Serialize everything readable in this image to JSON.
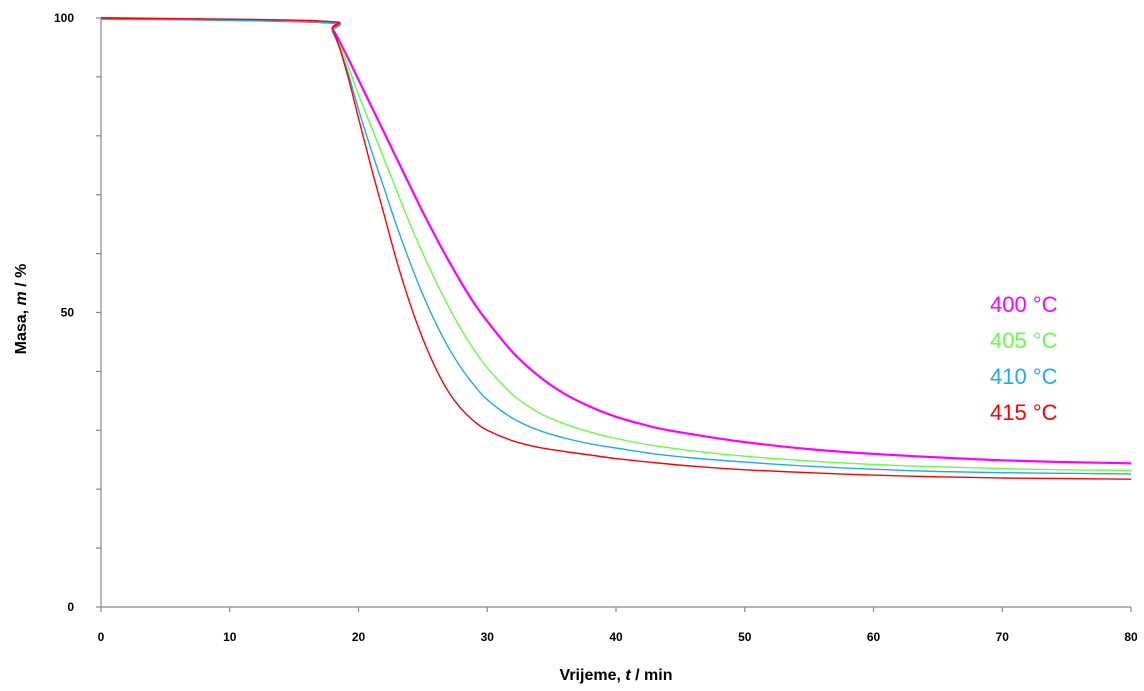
{
  "chart_data": {
    "type": "line",
    "title": "",
    "xlabel": {
      "prefix": "Vrijeme, ",
      "var": "t",
      "suffix": " / min"
    },
    "ylabel": {
      "prefix": "Masa, ",
      "var": "m",
      "suffix": " / %"
    },
    "xlim": [
      0,
      80
    ],
    "ylim": [
      0,
      100
    ],
    "xticks": [
      0,
      10,
      20,
      30,
      40,
      50,
      60,
      70,
      80
    ],
    "yticks": [
      0,
      50,
      100
    ],
    "grid": false,
    "legend_position": "right",
    "series": [
      {
        "name": "400 °C",
        "color": "#ff00ff",
        "x": [
          0,
          17,
          18,
          19,
          20,
          21,
          22,
          23,
          24,
          25,
          26,
          27,
          28,
          29,
          30,
          32,
          34,
          36,
          38,
          40,
          43,
          46,
          50,
          55,
          60,
          65,
          70,
          75,
          80
        ],
        "y": [
          100,
          99.3,
          98,
          94,
          89.5,
          85,
          80.5,
          76,
          71.5,
          67,
          62.8,
          58.8,
          55,
          51.5,
          48.5,
          43.2,
          39.2,
          36.2,
          34,
          32.3,
          30.5,
          29.3,
          28,
          26.8,
          26,
          25.4,
          24.9,
          24.6,
          24.4
        ]
      },
      {
        "name": "405 °C",
        "color": "#66ff44",
        "x": [
          0,
          17,
          18,
          19,
          20,
          21,
          22,
          23,
          24,
          25,
          26,
          27,
          28,
          29,
          30,
          32,
          34,
          36,
          38,
          40,
          43,
          46,
          50,
          55,
          60,
          65,
          70,
          75,
          80
        ],
        "y": [
          99.8,
          99.3,
          97.5,
          93,
          87,
          81.5,
          76,
          70.5,
          65,
          60,
          55.3,
          51,
          47,
          43.6,
          40.6,
          36,
          33,
          31.1,
          29.7,
          28.6,
          27.4,
          26.5,
          25.6,
          24.8,
          24.2,
          23.8,
          23.5,
          23.3,
          23.2
        ]
      },
      {
        "name": "410 °C",
        "color": "#22aaee",
        "x": [
          0,
          17,
          18,
          19,
          20,
          21,
          22,
          23,
          24,
          25,
          26,
          27,
          28,
          29,
          30,
          32,
          34,
          36,
          38,
          40,
          43,
          46,
          50,
          55,
          60,
          65,
          70,
          75,
          80
        ],
        "y": [
          99.8,
          99.3,
          97.5,
          92,
          84.5,
          77.5,
          71,
          64.5,
          58.5,
          53,
          48.2,
          44,
          40.5,
          37.6,
          35.2,
          32,
          30,
          28.7,
          27.7,
          27,
          26,
          25.3,
          24.6,
          23.9,
          23.4,
          23,
          22.8,
          22.7,
          22.6
        ]
      },
      {
        "name": "415 °C",
        "color": "#ff0000",
        "x": [
          0,
          17,
          18,
          19,
          20,
          21,
          22,
          23,
          24,
          25,
          26,
          27,
          28,
          29,
          30,
          32,
          34,
          36,
          38,
          40,
          43,
          46,
          50,
          55,
          60,
          65,
          70,
          75,
          80
        ],
        "y": [
          100,
          99.5,
          98,
          91.5,
          83,
          74.5,
          66.5,
          58.5,
          51.5,
          45.5,
          40.5,
          36.5,
          33.6,
          31.5,
          30,
          28.2,
          27.1,
          26.4,
          25.8,
          25.2,
          24.5,
          23.9,
          23.3,
          22.8,
          22.4,
          22.1,
          21.9,
          21.8,
          21.7
        ]
      }
    ]
  }
}
